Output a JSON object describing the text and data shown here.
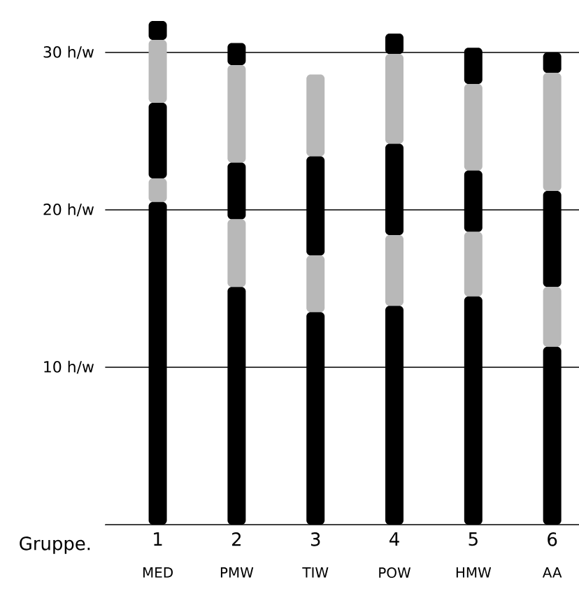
{
  "chart_data": {
    "type": "bar",
    "stacked": true,
    "xlabel": "Gruppe.",
    "x": [
      1,
      2,
      3,
      4,
      5,
      6
    ],
    "xlim": [
      0.33,
      6.34
    ],
    "xticks": [
      1,
      2,
      3,
      4,
      5,
      6
    ],
    "yticks": [
      {
        "value": 10,
        "label": "10 h/w"
      },
      {
        "value": 20,
        "label": "20 h/w"
      },
      {
        "value": 30,
        "label": "30 h/w"
      }
    ],
    "ylim": [
      0,
      33
    ],
    "grid": "y",
    "series": [
      {
        "color": "#000000",
        "values": [
          20.5,
          15.1,
          13.5,
          13.9,
          14.5,
          11.3
        ]
      },
      {
        "color": "#b8b8b8",
        "values": [
          1.5,
          4.3,
          3.6,
          4.5,
          4.1,
          3.8
        ]
      },
      {
        "color": "#000000",
        "values": [
          4.8,
          3.6,
          6.3,
          5.8,
          3.9,
          6.1
        ]
      },
      {
        "color": "#b8b8b8",
        "values": [
          4.0,
          6.2,
          5.2,
          5.7,
          5.5,
          7.5
        ]
      },
      {
        "color": "#000000",
        "values": [
          1.2,
          1.4,
          null,
          1.3,
          2.3,
          1.3
        ]
      }
    ],
    "annotations": [
      "MED",
      "PMW",
      "TIW",
      "POW",
      "HMW",
      "AA"
    ]
  }
}
